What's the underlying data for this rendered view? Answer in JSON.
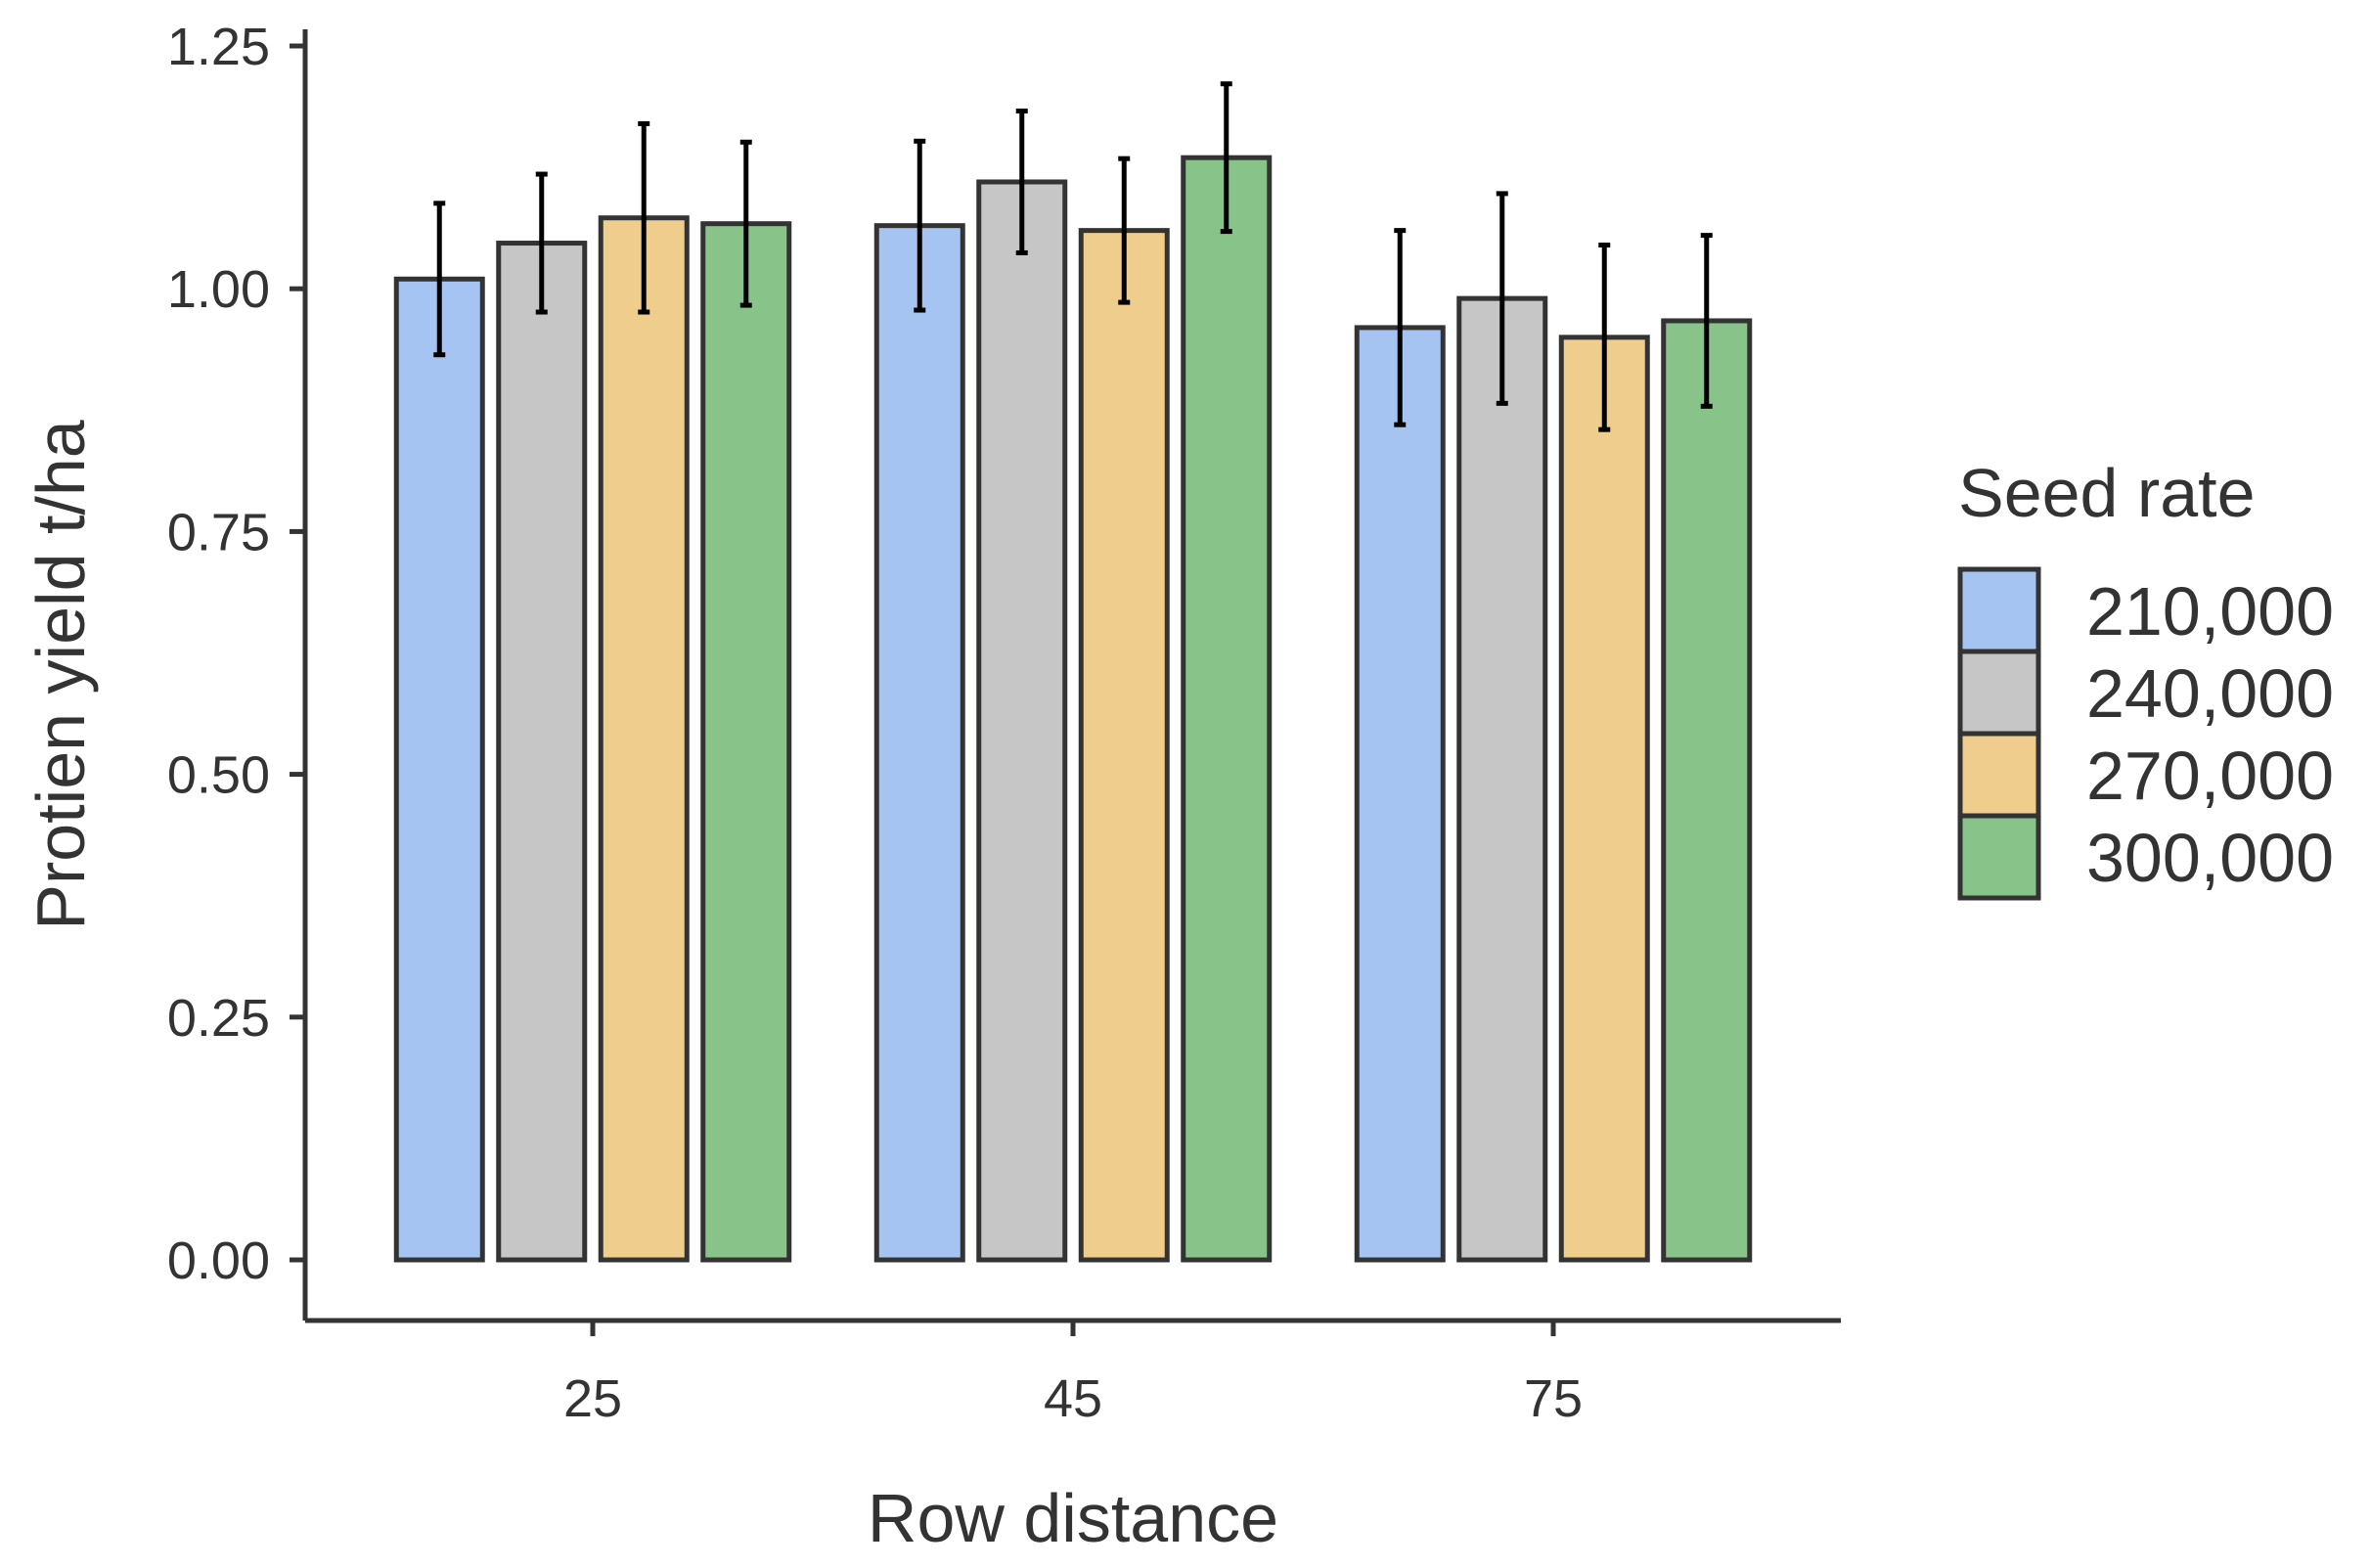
{
  "chart_data": {
    "type": "bar",
    "title": "",
    "xlabel": "Row distance",
    "ylabel": "Protien yield t/ha",
    "ylim": [
      0,
      1.25
    ],
    "yticks": [
      0,
      0.25,
      0.5,
      0.75,
      1.0,
      1.25
    ],
    "ytick_labels": [
      "0.00",
      "0.25",
      "0.50",
      "0.75",
      "1.00",
      "1.25"
    ],
    "categories": [
      "25",
      "45",
      "75"
    ],
    "series": [
      {
        "name": "210,000",
        "color": "#a6c4f2",
        "values": [
          1.01,
          1.065,
          0.96
        ],
        "errors": [
          0.078,
          0.087,
          0.1
        ]
      },
      {
        "name": "240,000",
        "color": "#c6c6c6",
        "values": [
          1.047,
          1.11,
          0.99
        ],
        "errors": [
          0.071,
          0.073,
          0.108
        ]
      },
      {
        "name": "270,000",
        "color": "#efcd8d",
        "values": [
          1.073,
          1.06,
          0.95
        ],
        "errors": [
          0.097,
          0.074,
          0.095
        ]
      },
      {
        "name": "300,000",
        "color": "#88c48a",
        "values": [
          1.067,
          1.135,
          0.967
        ],
        "errors": [
          0.084,
          0.076,
          0.088
        ]
      }
    ],
    "legend": {
      "title": "Seed rate",
      "position": "right"
    },
    "grid": false
  }
}
